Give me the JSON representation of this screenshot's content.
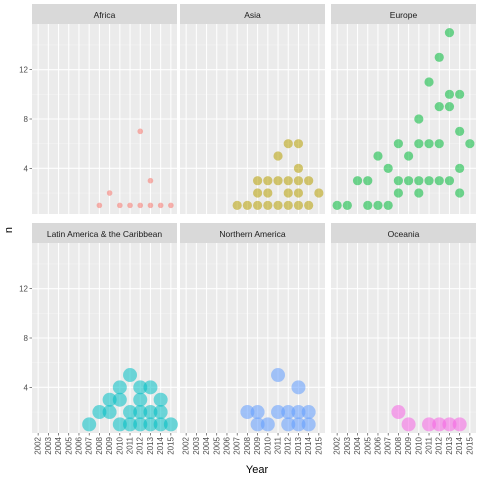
{
  "chart_data": {
    "type": "scatter",
    "xlabel": "Year",
    "ylabel": "n",
    "xlim": [
      2001.4,
      2015.6
    ],
    "ylim": [
      0.3,
      15.7
    ],
    "x_ticks": [
      2002,
      2003,
      2004,
      2005,
      2006,
      2007,
      2008,
      2009,
      2010,
      2011,
      2012,
      2013,
      2014,
      2015
    ],
    "y_ticks": [
      4,
      8,
      12
    ],
    "layout": "facet-grid 2x3",
    "grid": true,
    "colors": {
      "panel_bg": "#ebebeb",
      "strip_bg": "#d9d9d9",
      "grid_major": "#ffffff",
      "grid_minor": "#f4f4f4"
    },
    "series": [
      {
        "name": "Africa",
        "color": "#F8766D",
        "point_size": "small",
        "points": [
          [
            2008,
            1
          ],
          [
            2009,
            2
          ],
          [
            2010,
            1
          ],
          [
            2011,
            1
          ],
          [
            2012,
            1
          ],
          [
            2012,
            7
          ],
          [
            2013,
            1
          ],
          [
            2013,
            3
          ],
          [
            2014,
            1
          ],
          [
            2015,
            1
          ]
        ]
      },
      {
        "name": "Asia",
        "color": "#B79F00",
        "point_size": "medium",
        "points": [
          [
            2007,
            1
          ],
          [
            2008,
            1
          ],
          [
            2009,
            1
          ],
          [
            2009,
            2
          ],
          [
            2009,
            3
          ],
          [
            2010,
            1
          ],
          [
            2010,
            2
          ],
          [
            2010,
            3
          ],
          [
            2011,
            1
          ],
          [
            2011,
            3
          ],
          [
            2011,
            5
          ],
          [
            2012,
            1
          ],
          [
            2012,
            2
          ],
          [
            2012,
            3
          ],
          [
            2012,
            6
          ],
          [
            2013,
            1
          ],
          [
            2013,
            2
          ],
          [
            2013,
            3
          ],
          [
            2013,
            4
          ],
          [
            2013,
            6
          ],
          [
            2014,
            1
          ],
          [
            2014,
            3
          ],
          [
            2015,
            2
          ]
        ]
      },
      {
        "name": "Europe",
        "color": "#00BA38",
        "point_size": "medium",
        "points": [
          [
            2002,
            1
          ],
          [
            2003,
            1
          ],
          [
            2004,
            3
          ],
          [
            2005,
            1
          ],
          [
            2005,
            3
          ],
          [
            2006,
            1
          ],
          [
            2006,
            5
          ],
          [
            2007,
            1
          ],
          [
            2007,
            4
          ],
          [
            2008,
            2
          ],
          [
            2008,
            3
          ],
          [
            2008,
            6
          ],
          [
            2009,
            3
          ],
          [
            2009,
            5
          ],
          [
            2010,
            2
          ],
          [
            2010,
            3
          ],
          [
            2010,
            6
          ],
          [
            2010,
            8
          ],
          [
            2011,
            3
          ],
          [
            2011,
            6
          ],
          [
            2011,
            11
          ],
          [
            2012,
            3
          ],
          [
            2012,
            6
          ],
          [
            2012,
            9
          ],
          [
            2012,
            13
          ],
          [
            2013,
            3
          ],
          [
            2013,
            9
          ],
          [
            2013,
            10
          ],
          [
            2013,
            15
          ],
          [
            2014,
            2
          ],
          [
            2014,
            4
          ],
          [
            2014,
            7
          ],
          [
            2014,
            10
          ],
          [
            2015,
            6
          ]
        ]
      },
      {
        "name": "Latin America & the Caribbean",
        "color": "#00BFC4",
        "point_size": "large",
        "points": [
          [
            2007,
            1
          ],
          [
            2008,
            2
          ],
          [
            2009,
            2
          ],
          [
            2009,
            3
          ],
          [
            2010,
            1
          ],
          [
            2010,
            3
          ],
          [
            2010,
            4
          ],
          [
            2011,
            1
          ],
          [
            2011,
            2
          ],
          [
            2011,
            5
          ],
          [
            2012,
            1
          ],
          [
            2012,
            2
          ],
          [
            2012,
            3
          ],
          [
            2012,
            4
          ],
          [
            2013,
            1
          ],
          [
            2013,
            2
          ],
          [
            2013,
            4
          ],
          [
            2014,
            1
          ],
          [
            2014,
            2
          ],
          [
            2014,
            3
          ],
          [
            2015,
            1
          ]
        ]
      },
      {
        "name": "Northern America",
        "color": "#619CFF",
        "point_size": "large",
        "points": [
          [
            2008,
            2
          ],
          [
            2009,
            1
          ],
          [
            2009,
            2
          ],
          [
            2010,
            1
          ],
          [
            2011,
            2
          ],
          [
            2011,
            5
          ],
          [
            2012,
            1
          ],
          [
            2012,
            2
          ],
          [
            2013,
            1
          ],
          [
            2013,
            2
          ],
          [
            2013,
            4
          ],
          [
            2014,
            1
          ],
          [
            2014,
            2
          ]
        ]
      },
      {
        "name": "Oceania",
        "color": "#F564E3",
        "point_size": "large",
        "points": [
          [
            2008,
            2
          ],
          [
            2009,
            1
          ],
          [
            2011,
            1
          ],
          [
            2012,
            1
          ],
          [
            2013,
            1
          ],
          [
            2014,
            1
          ]
        ]
      }
    ]
  }
}
